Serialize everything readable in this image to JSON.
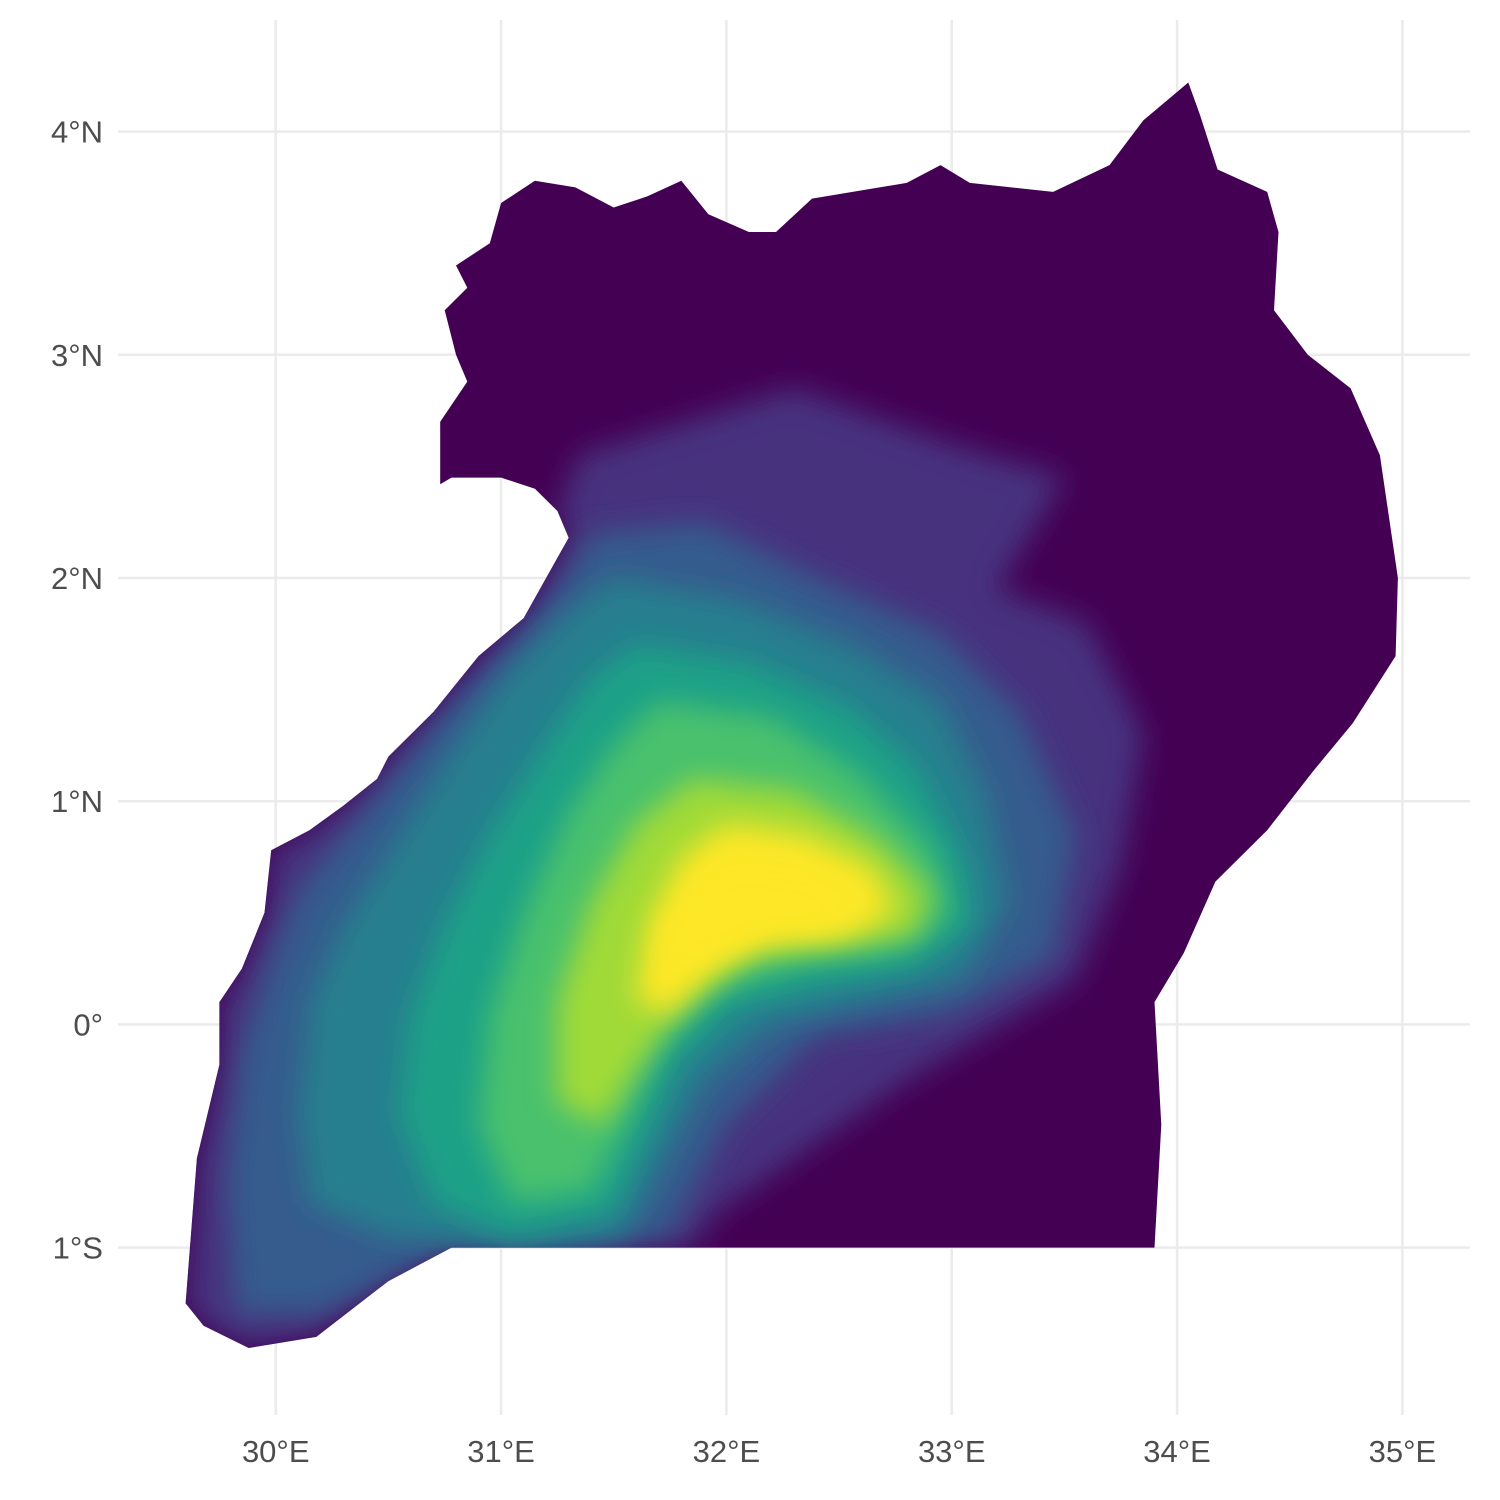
{
  "chart_data": {
    "type": "heatmap",
    "title": "",
    "xlabel": "",
    "ylabel": "",
    "xlim": [
      29.3,
      35.3
    ],
    "ylim": [
      -1.75,
      4.5
    ],
    "grid": true,
    "legend": "none",
    "x_ticks": [
      {
        "value": 30,
        "label": "30°E"
      },
      {
        "value": 31,
        "label": "31°E"
      },
      {
        "value": 32,
        "label": "32°E"
      },
      {
        "value": 33,
        "label": "33°E"
      },
      {
        "value": 34,
        "label": "34°E"
      },
      {
        "value": 35,
        "label": "35°E"
      }
    ],
    "y_ticks": [
      {
        "value": -1,
        "label": "1°S"
      },
      {
        "value": 0,
        "label": "0°"
      },
      {
        "value": 1,
        "label": "1°N"
      },
      {
        "value": 2,
        "label": "2°N"
      },
      {
        "value": 3,
        "label": "3°N"
      },
      {
        "value": 4,
        "label": "4°N"
      }
    ],
    "colorscale": [
      "#440154",
      "#46327e",
      "#365c8d",
      "#277f8e",
      "#1fa187",
      "#4ac16d",
      "#a0da39",
      "#fde725"
    ],
    "background_fill": "#440154",
    "outline": [
      [
        31.0,
        3.68
      ],
      [
        31.15,
        3.78
      ],
      [
        31.33,
        3.75
      ],
      [
        31.5,
        3.66
      ],
      [
        31.65,
        3.71
      ],
      [
        31.8,
        3.78
      ],
      [
        31.92,
        3.63
      ],
      [
        32.1,
        3.55
      ],
      [
        32.22,
        3.55
      ],
      [
        32.38,
        3.7
      ],
      [
        32.8,
        3.77
      ],
      [
        32.95,
        3.85
      ],
      [
        33.08,
        3.77
      ],
      [
        33.45,
        3.73
      ],
      [
        33.7,
        3.85
      ],
      [
        33.85,
        4.05
      ],
      [
        34.05,
        4.22
      ],
      [
        34.1,
        4.08
      ],
      [
        34.18,
        3.83
      ],
      [
        34.4,
        3.73
      ],
      [
        34.45,
        3.55
      ],
      [
        34.43,
        3.2
      ],
      [
        34.58,
        3.0
      ],
      [
        34.77,
        2.85
      ],
      [
        34.9,
        2.55
      ],
      [
        34.98,
        2.0
      ],
      [
        34.97,
        1.65
      ],
      [
        34.78,
        1.35
      ],
      [
        34.6,
        1.13
      ],
      [
        34.4,
        0.87
      ],
      [
        34.17,
        0.64
      ],
      [
        34.03,
        0.32
      ],
      [
        33.9,
        0.1
      ],
      [
        33.93,
        -0.45
      ],
      [
        33.9,
        -1.0
      ],
      [
        32.0,
        -1.0
      ],
      [
        31.3,
        -1.0
      ],
      [
        30.78,
        -1.0
      ],
      [
        30.5,
        -1.15
      ],
      [
        30.18,
        -1.4
      ],
      [
        29.88,
        -1.45
      ],
      [
        29.68,
        -1.35
      ],
      [
        29.6,
        -1.25
      ],
      [
        29.65,
        -0.6
      ],
      [
        29.75,
        -0.18
      ],
      [
        29.75,
        0.1
      ],
      [
        29.85,
        0.25
      ],
      [
        29.95,
        0.5
      ],
      [
        29.98,
        0.78
      ],
      [
        30.15,
        0.87
      ],
      [
        30.3,
        0.98
      ],
      [
        30.45,
        1.1
      ],
      [
        30.5,
        1.2
      ],
      [
        30.7,
        1.4
      ],
      [
        30.9,
        1.65
      ],
      [
        31.1,
        1.82
      ],
      [
        31.2,
        2.0
      ],
      [
        31.3,
        2.18
      ],
      [
        31.25,
        2.3
      ],
      [
        31.15,
        2.4
      ],
      [
        31.0,
        2.45
      ],
      [
        30.78,
        2.45
      ],
      [
        30.73,
        2.42
      ],
      [
        30.73,
        2.7
      ],
      [
        30.85,
        2.88
      ],
      [
        30.8,
        3.0
      ],
      [
        30.75,
        3.2
      ],
      [
        30.85,
        3.3
      ],
      [
        30.8,
        3.4
      ],
      [
        30.95,
        3.5
      ]
    ],
    "density_layers": [
      {
        "level": 1,
        "polygon": [
          [
            31.35,
            2.55
          ],
          [
            32.3,
            2.85
          ],
          [
            33.0,
            2.6
          ],
          [
            33.5,
            2.45
          ],
          [
            33.2,
            1.95
          ],
          [
            33.6,
            1.8
          ],
          [
            33.85,
            1.3
          ],
          [
            33.75,
            0.7
          ],
          [
            33.55,
            0.2
          ],
          [
            32.8,
            -0.25
          ],
          [
            32.3,
            -0.6
          ],
          [
            31.95,
            -0.85
          ],
          [
            31.85,
            -1.0
          ],
          [
            30.78,
            -1.0
          ],
          [
            30.5,
            -1.15
          ],
          [
            30.18,
            -1.4
          ],
          [
            29.88,
            -1.45
          ],
          [
            29.68,
            -1.35
          ],
          [
            29.6,
            -1.25
          ],
          [
            29.65,
            -0.6
          ],
          [
            29.75,
            -0.18
          ],
          [
            29.75,
            0.1
          ],
          [
            29.85,
            0.25
          ],
          [
            29.95,
            0.5
          ],
          [
            29.98,
            0.78
          ],
          [
            30.15,
            0.87
          ],
          [
            30.3,
            0.98
          ],
          [
            30.45,
            1.1
          ],
          [
            30.5,
            1.2
          ],
          [
            30.7,
            1.4
          ],
          [
            30.9,
            1.65
          ],
          [
            31.1,
            1.82
          ],
          [
            31.2,
            2.0
          ],
          [
            31.3,
            2.18
          ],
          [
            31.25,
            2.3
          ]
        ]
      },
      {
        "level": 2,
        "polygon": [
          [
            31.4,
            2.2
          ],
          [
            31.9,
            2.25
          ],
          [
            32.4,
            2.0
          ],
          [
            32.95,
            1.75
          ],
          [
            33.3,
            1.4
          ],
          [
            33.55,
            0.85
          ],
          [
            33.45,
            0.3
          ],
          [
            33.0,
            0.05
          ],
          [
            32.4,
            -0.05
          ],
          [
            32.0,
            -0.45
          ],
          [
            31.75,
            -0.95
          ],
          [
            31.3,
            -1.0
          ],
          [
            30.78,
            -1.0
          ],
          [
            30.5,
            -1.15
          ],
          [
            30.2,
            -1.3
          ],
          [
            29.82,
            -1.3
          ],
          [
            29.78,
            -0.7
          ],
          [
            29.85,
            -0.1
          ],
          [
            29.98,
            0.3
          ],
          [
            30.1,
            0.6
          ],
          [
            30.3,
            0.85
          ],
          [
            30.55,
            1.15
          ],
          [
            30.8,
            1.45
          ],
          [
            31.05,
            1.7
          ],
          [
            31.25,
            1.95
          ]
        ]
      },
      {
        "level": 3,
        "polygon": [
          [
            31.5,
            2.0
          ],
          [
            32.05,
            1.9
          ],
          [
            32.55,
            1.7
          ],
          [
            32.95,
            1.45
          ],
          [
            33.15,
            1.05
          ],
          [
            33.25,
            0.55
          ],
          [
            33.05,
            0.2
          ],
          [
            32.6,
            0.1
          ],
          [
            32.2,
            0.0
          ],
          [
            31.9,
            -0.25
          ],
          [
            31.72,
            -0.6
          ],
          [
            31.55,
            -0.95
          ],
          [
            31.1,
            -1.0
          ],
          [
            30.5,
            -0.95
          ],
          [
            30.15,
            -0.8
          ],
          [
            30.1,
            -0.4
          ],
          [
            30.15,
            0.1
          ],
          [
            30.3,
            0.45
          ],
          [
            30.55,
            0.85
          ],
          [
            30.8,
            1.25
          ],
          [
            31.05,
            1.6
          ],
          [
            31.3,
            1.85
          ]
        ]
      },
      {
        "level": 4,
        "polygon": [
          [
            31.6,
            1.7
          ],
          [
            32.1,
            1.62
          ],
          [
            32.55,
            1.42
          ],
          [
            32.85,
            1.15
          ],
          [
            33.05,
            0.75
          ],
          [
            33.1,
            0.45
          ],
          [
            32.85,
            0.25
          ],
          [
            32.45,
            0.18
          ],
          [
            32.05,
            0.08
          ],
          [
            31.8,
            -0.15
          ],
          [
            31.65,
            -0.5
          ],
          [
            31.5,
            -0.85
          ],
          [
            31.05,
            -0.95
          ],
          [
            30.7,
            -0.8
          ],
          [
            30.55,
            -0.4
          ],
          [
            30.6,
            0.05
          ],
          [
            30.75,
            0.45
          ],
          [
            30.95,
            0.85
          ],
          [
            31.2,
            1.25
          ],
          [
            31.4,
            1.55
          ]
        ]
      },
      {
        "level": 5,
        "polygon": [
          [
            31.7,
            1.45
          ],
          [
            32.2,
            1.38
          ],
          [
            32.6,
            1.12
          ],
          [
            32.9,
            0.8
          ],
          [
            33.0,
            0.5
          ],
          [
            32.75,
            0.33
          ],
          [
            32.35,
            0.28
          ],
          [
            31.95,
            0.15
          ],
          [
            31.7,
            -0.1
          ],
          [
            31.55,
            -0.45
          ],
          [
            31.4,
            -0.75
          ],
          [
            31.05,
            -0.8
          ],
          [
            30.9,
            -0.45
          ],
          [
            30.95,
            0.05
          ],
          [
            31.1,
            0.5
          ],
          [
            31.3,
            0.95
          ],
          [
            31.5,
            1.25
          ]
        ]
      },
      {
        "level": 6,
        "polygon": [
          [
            31.85,
            1.1
          ],
          [
            32.3,
            1.05
          ],
          [
            32.65,
            0.85
          ],
          [
            32.9,
            0.6
          ],
          [
            32.85,
            0.4
          ],
          [
            32.5,
            0.35
          ],
          [
            32.1,
            0.3
          ],
          [
            31.8,
            0.08
          ],
          [
            31.6,
            -0.2
          ],
          [
            31.45,
            -0.45
          ],
          [
            31.25,
            -0.35
          ],
          [
            31.25,
            0.1
          ],
          [
            31.4,
            0.55
          ],
          [
            31.6,
            0.9
          ]
        ]
      },
      {
        "level": 7,
        "polygon": [
          [
            32.0,
            0.9
          ],
          [
            32.35,
            0.85
          ],
          [
            32.65,
            0.7
          ],
          [
            32.75,
            0.5
          ],
          [
            32.55,
            0.4
          ],
          [
            32.2,
            0.38
          ],
          [
            31.95,
            0.25
          ],
          [
            31.75,
            0.05
          ],
          [
            31.6,
            0.1
          ],
          [
            31.65,
            0.45
          ],
          [
            31.8,
            0.75
          ]
        ]
      },
      {
        "level": 8,
        "polygon": [
          [
            32.05,
            0.7
          ],
          [
            32.4,
            0.65
          ],
          [
            32.6,
            0.52
          ],
          [
            32.45,
            0.42
          ],
          [
            32.15,
            0.4
          ],
          [
            31.9,
            0.3
          ],
          [
            31.72,
            0.22
          ],
          [
            31.75,
            0.45
          ],
          [
            31.9,
            0.62
          ]
        ]
      }
    ]
  }
}
